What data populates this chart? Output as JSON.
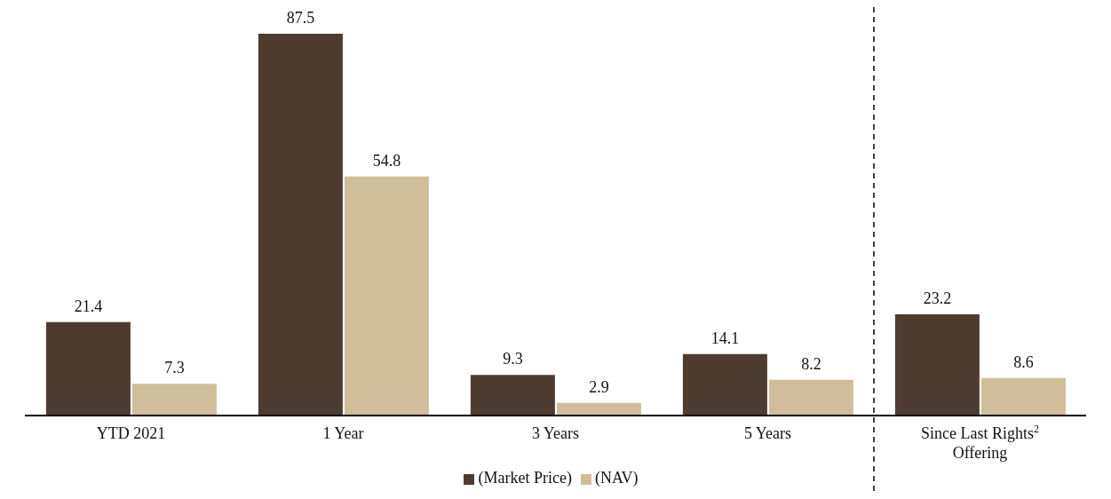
{
  "chart_data": {
    "type": "bar",
    "categories": [
      "YTD 2021",
      "1 Year",
      "3 Years",
      "5 Years",
      "Since Last Rights$^{2}$ Offering"
    ],
    "series": [
      {
        "name": "(Market Price)",
        "color": "#4f3c30",
        "values": [
          21.4,
          87.5,
          9.3,
          14.1,
          23.2
        ]
      },
      {
        "name": "(NAV)",
        "color": "#d0bd9a",
        "values": [
          7.3,
          54.8,
          2.9,
          8.2,
          8.6
        ]
      }
    ],
    "data_labels": true,
    "legend": "bottom",
    "grid": false
  }
}
